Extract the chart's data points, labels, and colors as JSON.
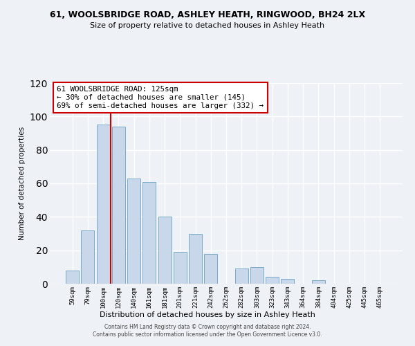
{
  "title": "61, WOOLSBRIDGE ROAD, ASHLEY HEATH, RINGWOOD, BH24 2LX",
  "subtitle": "Size of property relative to detached houses in Ashley Heath",
  "xlabel": "Distribution of detached houses by size in Ashley Heath",
  "ylabel": "Number of detached properties",
  "bar_labels": [
    "59sqm",
    "79sqm",
    "100sqm",
    "120sqm",
    "140sqm",
    "161sqm",
    "181sqm",
    "201sqm",
    "221sqm",
    "242sqm",
    "262sqm",
    "282sqm",
    "303sqm",
    "323sqm",
    "343sqm",
    "364sqm",
    "384sqm",
    "404sqm",
    "425sqm",
    "445sqm",
    "465sqm"
  ],
  "bar_values": [
    8,
    32,
    95,
    94,
    63,
    61,
    40,
    19,
    30,
    18,
    0,
    9,
    10,
    4,
    3,
    0,
    2,
    0,
    0,
    0,
    0
  ],
  "bar_color": "#c8d8ea",
  "bar_edge_color": "#7aaac8",
  "vline_color": "#cc0000",
  "annotation_title": "61 WOOLSBRIDGE ROAD: 125sqm",
  "annotation_line1": "← 30% of detached houses are smaller (145)",
  "annotation_line2": "69% of semi-detached houses are larger (332) →",
  "annotation_box_facecolor": "#ffffff",
  "annotation_box_edgecolor": "#cc0000",
  "ylim": [
    0,
    120
  ],
  "yticks": [
    0,
    20,
    40,
    60,
    80,
    100,
    120
  ],
  "footer_line1": "Contains HM Land Registry data © Crown copyright and database right 2024.",
  "footer_line2": "Contains public sector information licensed under the Open Government Licence v3.0.",
  "bg_color": "#eef2f7",
  "grid_color": "#ffffff",
  "title_fontsize": 9,
  "subtitle_fontsize": 8
}
